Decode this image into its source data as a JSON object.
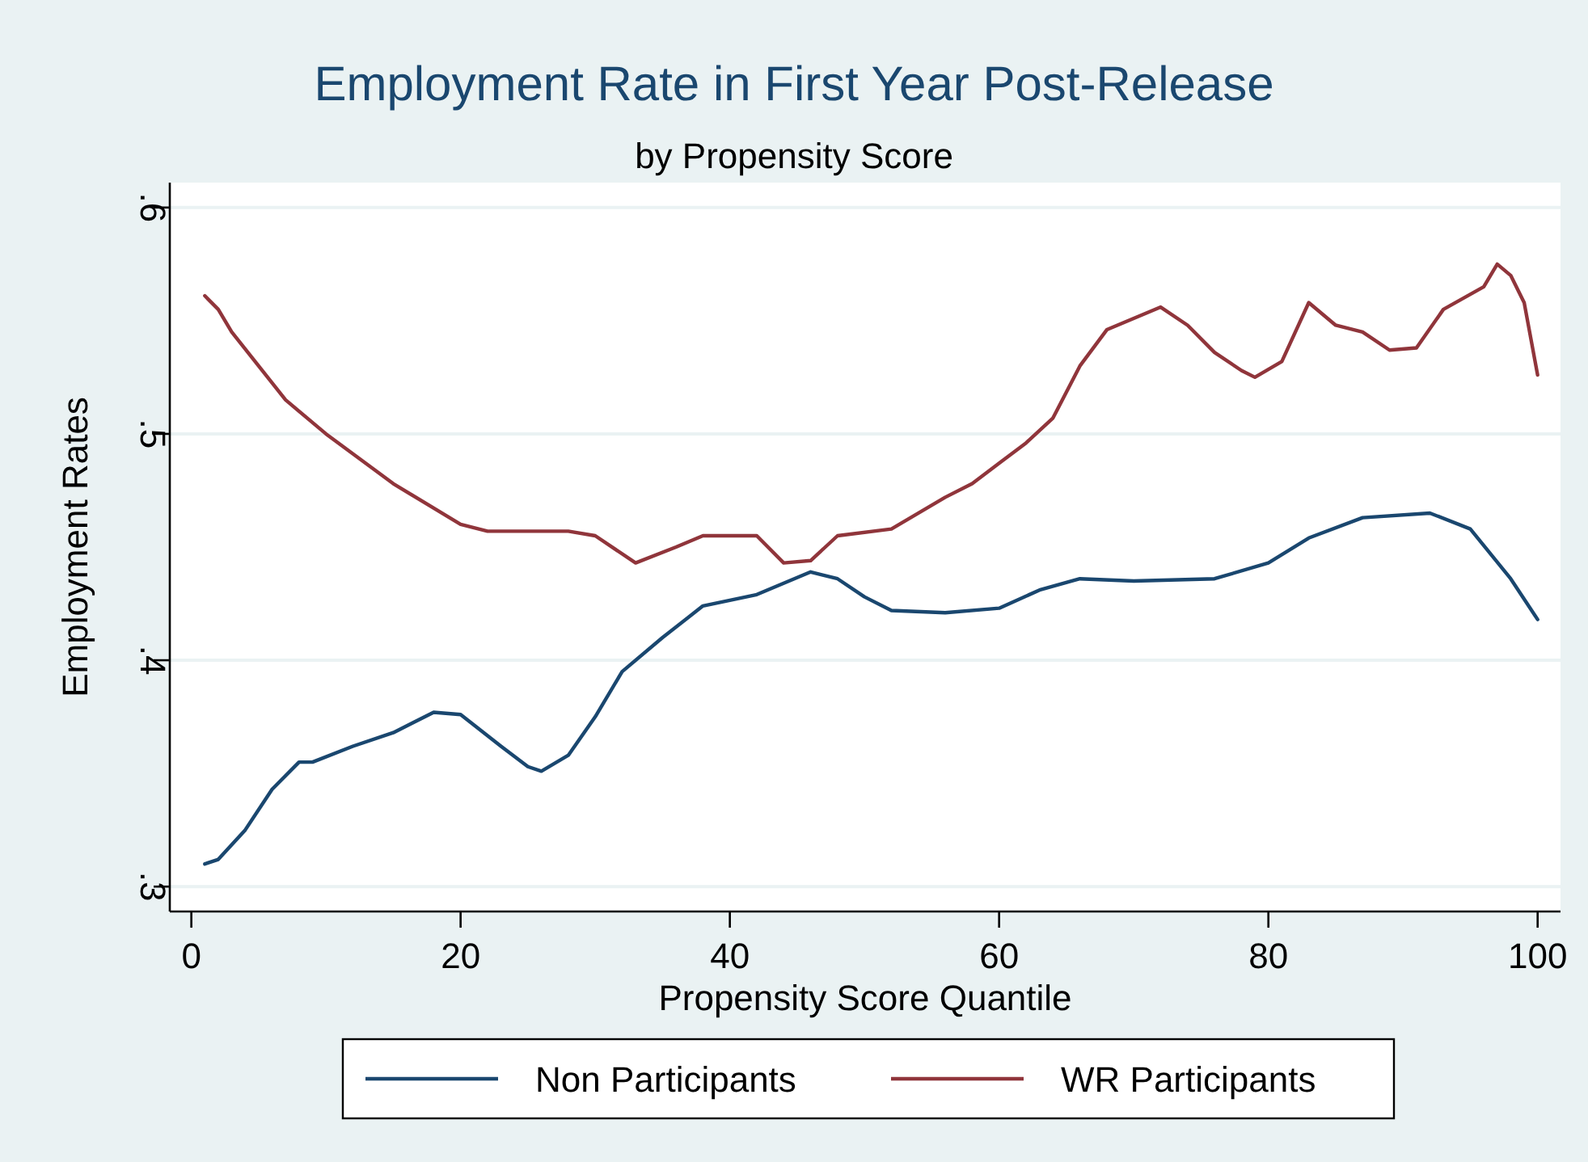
{
  "chart_data": {
    "type": "line",
    "title": "Employment Rate in First Year Post-Release",
    "subtitle": "by Propensity Score",
    "xlabel": "Propensity Score Quantile",
    "ylabel": "Employment Rates",
    "xlim": [
      -1.6,
      101.7
    ],
    "ylim": [
      0.289,
      0.611
    ],
    "xticks": [
      0,
      20,
      40,
      60,
      80,
      100
    ],
    "yticks": [
      {
        "value": 0.3,
        "label": ".3"
      },
      {
        "value": 0.4,
        "label": ".4"
      },
      {
        "value": 0.5,
        "label": ".5"
      },
      {
        "value": 0.6,
        "label": ".6"
      }
    ],
    "grid": "y",
    "legend": "bottom",
    "marker": "none",
    "line_style": "solid",
    "series": [
      {
        "name": "Non Participants",
        "color": "#1a476f",
        "x": [
          1,
          2,
          4,
          6,
          8,
          9,
          12,
          15,
          18,
          20,
          23,
          25,
          26,
          28,
          30,
          32,
          35,
          38,
          42,
          46,
          48,
          50,
          52,
          56,
          60,
          63,
          66,
          70,
          76,
          80,
          83,
          87,
          92,
          95,
          98,
          100
        ],
        "values": [
          0.31,
          0.312,
          0.325,
          0.343,
          0.355,
          0.355,
          0.362,
          0.368,
          0.377,
          0.376,
          0.362,
          0.353,
          0.351,
          0.358,
          0.375,
          0.395,
          0.41,
          0.424,
          0.429,
          0.439,
          0.436,
          0.428,
          0.422,
          0.421,
          0.423,
          0.431,
          0.436,
          0.435,
          0.436,
          0.443,
          0.454,
          0.463,
          0.465,
          0.458,
          0.436,
          0.418
        ]
      },
      {
        "name": "WR Participants",
        "color": "#90353b",
        "x": [
          1,
          2,
          3,
          5,
          7,
          10,
          15,
          20,
          22,
          28,
          30,
          33,
          36,
          38,
          42,
          44,
          46,
          48,
          52,
          56,
          58,
          60,
          62,
          64,
          66,
          68,
          70,
          72,
          74,
          76,
          78,
          79,
          81,
          83,
          85,
          87,
          89,
          91,
          93,
          96,
          97,
          98,
          99,
          100
        ],
        "values": [
          0.561,
          0.555,
          0.545,
          0.53,
          0.515,
          0.5,
          0.478,
          0.46,
          0.457,
          0.457,
          0.455,
          0.443,
          0.45,
          0.455,
          0.455,
          0.443,
          0.444,
          0.455,
          0.458,
          0.472,
          0.478,
          0.487,
          0.496,
          0.507,
          0.53,
          0.546,
          0.551,
          0.556,
          0.548,
          0.536,
          0.528,
          0.525,
          0.532,
          0.558,
          0.548,
          0.545,
          0.537,
          0.538,
          0.555,
          0.565,
          0.575,
          0.57,
          0.558,
          0.526
        ]
      }
    ]
  }
}
